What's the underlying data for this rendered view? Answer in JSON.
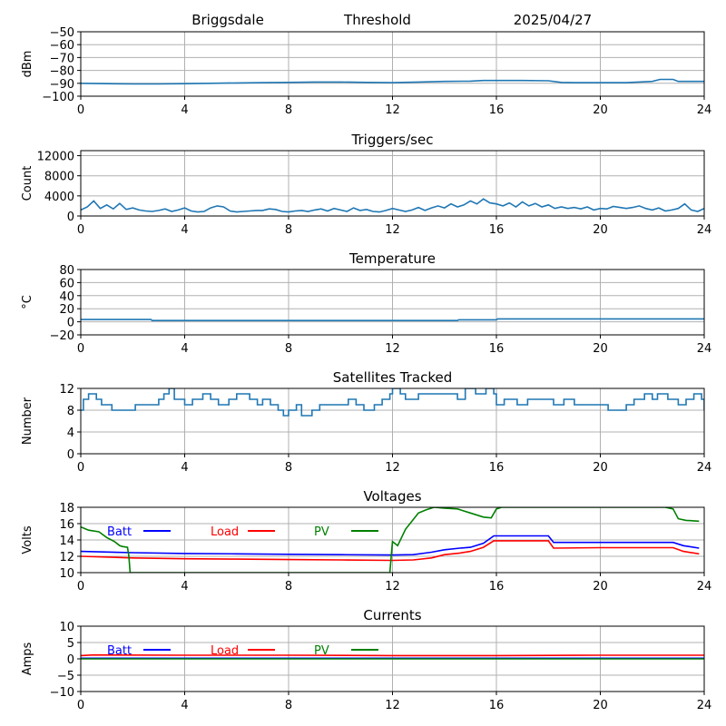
{
  "header": {
    "station": "Briggsdale",
    "mode": "Threshold",
    "date": "2025/04/27"
  },
  "colors": {
    "trace": "#1f77b4",
    "batt": "#0000ff",
    "load": "#ff0000",
    "pv": "#008000",
    "grid": "#b0b0b0"
  },
  "chart_data": [
    {
      "id": "signal",
      "type": "line",
      "title": "",
      "ylabel": "dBm",
      "xlim": [
        0,
        24
      ],
      "xticks": [
        "0",
        "4",
        "8",
        "12",
        "16",
        "20",
        "24"
      ],
      "ylim": [
        -100,
        -50
      ],
      "yticks": [
        -100,
        -90,
        -80,
        -70,
        -60,
        -50
      ],
      "ytick_labels": [
        "−100",
        "−90",
        "−80",
        "−70",
        "−60",
        "−50"
      ],
      "grid": true,
      "series": [
        {
          "color_key": "trace",
          "x": [
            0,
            1,
            2,
            3,
            4,
            5,
            6,
            7,
            8,
            9,
            10,
            11,
            12,
            13,
            14,
            15,
            15.5,
            16,
            17,
            18,
            18.5,
            19,
            20,
            21,
            22,
            22.3,
            22.8,
            23,
            24
          ],
          "y": [
            -90,
            -90.3,
            -90.5,
            -90.5,
            -90.3,
            -90,
            -89.7,
            -89.5,
            -89.3,
            -89,
            -89,
            -89.3,
            -89.5,
            -89,
            -88.5,
            -88.3,
            -87.8,
            -87.8,
            -87.8,
            -88,
            -89.3,
            -89.5,
            -89.5,
            -89.5,
            -88.5,
            -87,
            -87,
            -88.5,
            -88.5
          ]
        }
      ]
    },
    {
      "id": "triggers",
      "type": "line",
      "title": "Triggers/sec",
      "ylabel": "Count",
      "xlim": [
        0,
        24
      ],
      "xticks": [
        "0",
        "4",
        "8",
        "12",
        "16",
        "20",
        "24"
      ],
      "ylim": [
        0,
        13000
      ],
      "yticks": [
        0,
        4000,
        8000,
        12000
      ],
      "ytick_labels": [
        "0",
        "4000",
        "8000",
        "12000"
      ],
      "grid": true,
      "series": [
        {
          "color_key": "trace",
          "x": [
            0,
            0.25,
            0.5,
            0.75,
            1,
            1.25,
            1.5,
            1.75,
            2,
            2.25,
            2.5,
            2.75,
            3,
            3.25,
            3.5,
            3.75,
            4,
            4.25,
            4.5,
            4.75,
            5,
            5.25,
            5.5,
            5.75,
            6,
            6.25,
            6.5,
            6.75,
            7,
            7.25,
            7.5,
            7.75,
            8,
            8.25,
            8.5,
            8.75,
            9,
            9.25,
            9.5,
            9.75,
            10,
            10.25,
            10.5,
            10.75,
            11,
            11.25,
            11.5,
            11.75,
            12,
            12.25,
            12.5,
            12.75,
            13,
            13.25,
            13.5,
            13.75,
            14,
            14.25,
            14.5,
            14.75,
            15,
            15.25,
            15.5,
            15.75,
            16,
            16.25,
            16.5,
            16.75,
            17,
            17.25,
            17.5,
            17.75,
            18,
            18.25,
            18.5,
            18.75,
            19,
            19.25,
            19.5,
            19.75,
            20,
            20.25,
            20.5,
            20.75,
            21,
            21.25,
            21.5,
            21.75,
            22,
            22.25,
            22.5,
            22.75,
            23,
            23.25,
            23.5,
            23.75,
            24
          ],
          "y": [
            1200,
            1800,
            3000,
            1500,
            2200,
            1400,
            2500,
            1300,
            1600,
            1200,
            1000,
            900,
            1100,
            1400,
            900,
            1200,
            1600,
            1000,
            800,
            900,
            1600,
            2000,
            1800,
            1000,
            800,
            900,
            1000,
            1100,
            1100,
            1400,
            1300,
            900,
            800,
            1000,
            1100,
            900,
            1200,
            1400,
            1000,
            1500,
            1200,
            900,
            1600,
            1100,
            1300,
            900,
            800,
            1100,
            1500,
            1200,
            900,
            1200,
            1700,
            1100,
            1600,
            2000,
            1600,
            2400,
            1800,
            2200,
            3000,
            2400,
            3400,
            2600,
            2400,
            2000,
            2600,
            1800,
            2800,
            2000,
            2500,
            1800,
            2200,
            1500,
            1800,
            1500,
            1700,
            1400,
            1800,
            1200,
            1500,
            1400,
            1900,
            1700,
            1500,
            1700,
            2000,
            1500,
            1200,
            1600,
            1000,
            1200,
            1500,
            2400,
            1200,
            900,
            1500
          ]
        }
      ]
    },
    {
      "id": "temperature",
      "type": "line",
      "title": "Temperature",
      "ylabel": "°C",
      "xlim": [
        0,
        24
      ],
      "xticks": [
        "0",
        "4",
        "8",
        "12",
        "16",
        "20",
        "24"
      ],
      "ylim": [
        -20,
        80
      ],
      "yticks": [
        -20,
        0,
        20,
        40,
        60,
        80
      ],
      "ytick_labels": [
        "−20",
        "0",
        "20",
        "40",
        "60",
        "80"
      ],
      "grid": true,
      "series": [
        {
          "color_key": "trace",
          "x": [
            0,
            2.7,
            2.75,
            14.5,
            14.55,
            16,
            16.05,
            24
          ],
          "y": [
            3.5,
            3.5,
            2,
            2,
            3,
            3,
            4.5,
            4.5
          ]
        }
      ]
    },
    {
      "id": "satellites",
      "type": "line",
      "title": "Satellites Tracked",
      "ylabel": "Number",
      "xlim": [
        0,
        24
      ],
      "xticks": [
        "0",
        "4",
        "8",
        "12",
        "16",
        "20",
        "24"
      ],
      "ylim": [
        0,
        12
      ],
      "yticks": [
        0,
        4,
        8,
        12
      ],
      "ytick_labels": [
        "0",
        "4",
        "8",
        "12"
      ],
      "grid": true,
      "step": true,
      "series": [
        {
          "color_key": "trace",
          "x": [
            0,
            0.1,
            0.3,
            0.6,
            0.8,
            1.2,
            1.8,
            2.1,
            2.3,
            2.9,
            3.0,
            3.2,
            3.4,
            3.6,
            4.0,
            4.3,
            4.7,
            5.0,
            5.3,
            5.7,
            6.0,
            6.2,
            6.5,
            6.8,
            7.0,
            7.3,
            7.6,
            7.8,
            8.0,
            8.3,
            8.5,
            8.9,
            9.2,
            9.5,
            10.0,
            10.3,
            10.6,
            10.9,
            11.3,
            11.6,
            11.9,
            12.0,
            12.3,
            12.5,
            13.0,
            13.5,
            14.0,
            14.5,
            14.8,
            15.2,
            15.6,
            15.9,
            16.0,
            16.3,
            16.8,
            17.2,
            17.8,
            18.2,
            18.6,
            19.0,
            19.5,
            19.9,
            20.3,
            20.6,
            21.0,
            21.3,
            21.7,
            22.0,
            22.2,
            22.6,
            23.0,
            23.3,
            23.6,
            23.9,
            24
          ],
          "y": [
            8,
            10,
            11,
            10,
            9,
            8,
            8,
            9,
            9,
            9,
            10,
            11,
            12,
            10,
            9,
            10,
            11,
            10,
            9,
            10,
            11,
            11,
            10,
            9,
            10,
            9,
            8,
            7,
            8,
            9,
            7,
            8,
            9,
            9,
            9,
            10,
            9,
            8,
            9,
            10,
            11,
            12,
            11,
            10,
            11,
            11,
            11,
            10,
            12,
            11,
            12,
            11,
            9,
            10,
            9,
            10,
            10,
            9,
            10,
            9,
            9,
            9,
            8,
            8,
            9,
            10,
            11,
            10,
            11,
            10,
            9,
            10,
            11,
            10,
            8
          ]
        }
      ]
    },
    {
      "id": "voltages",
      "type": "line",
      "title": "Voltages",
      "ylabel": "Volts",
      "xlim": [
        0,
        24
      ],
      "xticks": [
        "0",
        "4",
        "8",
        "12",
        "16",
        "20",
        "24"
      ],
      "ylim": [
        10,
        18
      ],
      "yticks": [
        10,
        12,
        14,
        16,
        18
      ],
      "ytick_labels": [
        "10",
        "12",
        "14",
        "16",
        "18"
      ],
      "grid": true,
      "legend": [
        {
          "label": "Batt",
          "color_key": "batt"
        },
        {
          "label": "Load",
          "color_key": "load"
        },
        {
          "label": "PV",
          "color_key": "pv"
        }
      ],
      "series": [
        {
          "name": "Batt",
          "color_key": "batt",
          "x": [
            0,
            2,
            4,
            6,
            8,
            10,
            12,
            12.8,
            13.5,
            14,
            14.6,
            15,
            15.5,
            15.9,
            16.0,
            17,
            18,
            18.2,
            20,
            22,
            22.8,
            23.2,
            23.8
          ],
          "y": [
            12.6,
            12.45,
            12.35,
            12.3,
            12.25,
            12.2,
            12.15,
            12.2,
            12.5,
            12.8,
            13.0,
            13.1,
            13.6,
            14.5,
            14.5,
            14.5,
            14.5,
            13.7,
            13.7,
            13.7,
            13.7,
            13.3,
            13.0
          ]
        },
        {
          "name": "Load",
          "color_key": "load",
          "x": [
            0,
            2,
            4,
            6,
            8,
            10,
            12,
            12.8,
            13.5,
            14,
            14.6,
            15,
            15.5,
            15.9,
            16.0,
            17,
            18,
            18.2,
            20,
            22,
            22.8,
            23.2,
            23.8
          ],
          "y": [
            12.0,
            11.8,
            11.7,
            11.65,
            11.6,
            11.55,
            11.5,
            11.55,
            11.8,
            12.2,
            12.4,
            12.6,
            13.1,
            13.9,
            13.9,
            13.9,
            13.9,
            13.0,
            13.05,
            13.05,
            13.05,
            12.6,
            12.3
          ]
        },
        {
          "name": "PV",
          "color_key": "pv",
          "x": [
            0,
            0.3,
            0.7,
            1,
            1.3,
            1.5,
            1.6,
            1.8,
            1.85,
            1.9,
            11.9,
            11.95,
            12.0,
            12.2,
            12.5,
            13.0,
            13.3,
            13.6,
            14.0,
            14.5,
            15.0,
            15.5,
            15.8,
            16.0,
            16.2,
            22.5,
            22.8,
            23.0,
            23.3,
            23.8
          ],
          "y": [
            15.6,
            15.2,
            15.0,
            14.3,
            13.8,
            13.3,
            13.2,
            13.1,
            12.0,
            10.0,
            10.0,
            12.0,
            13.8,
            13.3,
            15.3,
            17.3,
            17.7,
            18.0,
            17.9,
            17.8,
            17.3,
            16.8,
            16.7,
            17.8,
            18.0,
            18.0,
            17.8,
            16.6,
            16.4,
            16.3
          ]
        }
      ]
    },
    {
      "id": "currents",
      "type": "line",
      "title": "Currents",
      "ylabel": "Amps",
      "xlim": [
        0,
        24
      ],
      "xticks": [
        "0",
        "4",
        "8",
        "12",
        "16",
        "20",
        "24"
      ],
      "ylim": [
        -10,
        10
      ],
      "yticks": [
        -10,
        -5,
        0,
        5,
        10
      ],
      "ytick_labels": [
        "−10",
        "−5",
        "0",
        "5",
        "10"
      ],
      "grid": true,
      "legend": [
        {
          "label": "Batt",
          "color_key": "batt"
        },
        {
          "label": "Load",
          "color_key": "load"
        },
        {
          "label": "PV",
          "color_key": "pv"
        }
      ],
      "series": [
        {
          "name": "Batt",
          "color_key": "batt",
          "x": [
            0,
            24
          ],
          "y": [
            0.2,
            0.2
          ]
        },
        {
          "name": "Load",
          "color_key": "load",
          "x": [
            0,
            0.5,
            4,
            8,
            12,
            16,
            20,
            24
          ],
          "y": [
            1.0,
            1.2,
            1.1,
            1.1,
            1.0,
            1.0,
            1.1,
            1.1
          ]
        },
        {
          "name": "PV",
          "color_key": "pv",
          "x": [
            0,
            24
          ],
          "y": [
            0.0,
            0.0
          ]
        }
      ]
    }
  ]
}
